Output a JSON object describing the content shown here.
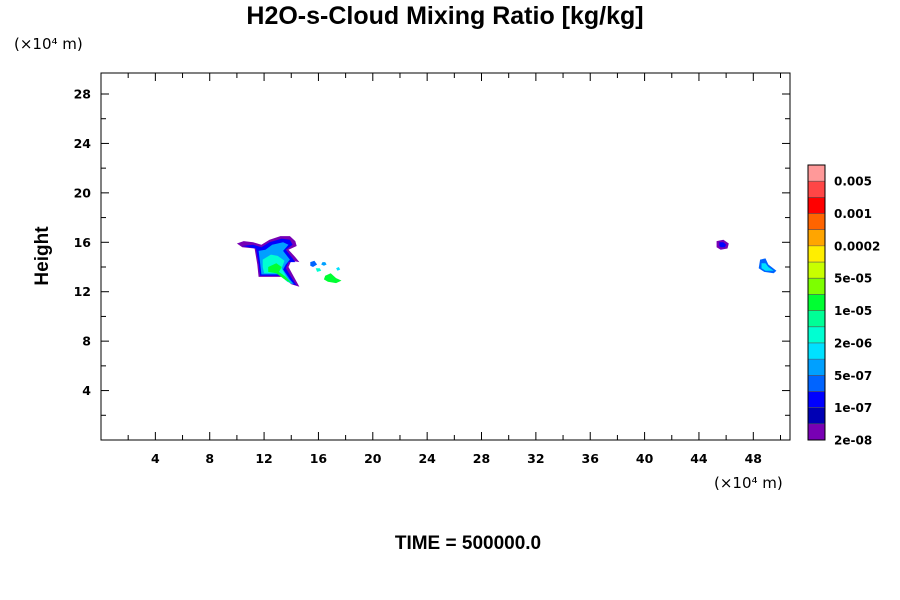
{
  "chart_data": {
    "type": "heatmap",
    "title": "H2O-s-Cloud Mixing Ratio [kg/kg]",
    "ylabel": "Height",
    "x_unit": "(×10⁴ m)",
    "y_unit": "(×10⁴ m)",
    "xlim": [
      0,
      50.7
    ],
    "ylim": [
      0,
      29.7
    ],
    "x_ticks": [
      4,
      8,
      12,
      16,
      20,
      24,
      28,
      32,
      36,
      40,
      44,
      48
    ],
    "y_ticks": [
      4,
      8,
      12,
      16,
      20,
      24,
      28
    ],
    "grid": false,
    "footer": "TIME = 500000.0",
    "colorbar": {
      "labels": [
        "0.005",
        "0.001",
        "0.0002",
        "5e-05",
        "1e-05",
        "2e-06",
        "5e-07",
        "1e-07",
        "2e-08"
      ],
      "colors": [
        "#ff9999",
        "#ff4646",
        "#ff0000",
        "#ff6400",
        "#ffa500",
        "#ffee00",
        "#c8ff00",
        "#7dff00",
        "#00ff32",
        "#00ff96",
        "#00ffd2",
        "#00e1ff",
        "#00a0ff",
        "#0064ff",
        "#0000ff",
        "#0000b4",
        "#7800b4"
      ]
    },
    "regions": [
      {
        "name": "cloud-main-outer",
        "color": "#7800b4",
        "points": [
          [
            10.0,
            15.9
          ],
          [
            10.5,
            16.1
          ],
          [
            11.2,
            16.0
          ],
          [
            11.8,
            15.8
          ],
          [
            12.4,
            16.2
          ],
          [
            13.2,
            16.5
          ],
          [
            13.9,
            16.5
          ],
          [
            14.3,
            16.1
          ],
          [
            14.4,
            15.7
          ],
          [
            13.8,
            15.4
          ],
          [
            14.3,
            14.8
          ],
          [
            14.6,
            14.4
          ],
          [
            14.0,
            14.5
          ],
          [
            13.8,
            14.0
          ],
          [
            14.3,
            13.0
          ],
          [
            14.6,
            12.4
          ],
          [
            14.0,
            12.6
          ],
          [
            13.4,
            13.2
          ],
          [
            11.6,
            13.2
          ],
          [
            11.5,
            14.2
          ],
          [
            11.3,
            15.5
          ],
          [
            10.4,
            15.6
          ]
        ]
      },
      {
        "name": "cloud-main-blue",
        "color": "#0000ff",
        "points": [
          [
            10.4,
            15.7
          ],
          [
            11.2,
            15.8
          ],
          [
            11.8,
            15.6
          ],
          [
            12.4,
            16.0
          ],
          [
            13.3,
            16.3
          ],
          [
            13.9,
            16.2
          ],
          [
            14.1,
            15.8
          ],
          [
            13.6,
            15.4
          ],
          [
            14.1,
            14.7
          ],
          [
            14.3,
            14.4
          ],
          [
            13.8,
            14.4
          ],
          [
            13.6,
            13.9
          ],
          [
            14.1,
            13.0
          ],
          [
            14.4,
            12.5
          ],
          [
            13.9,
            12.7
          ],
          [
            13.3,
            13.3
          ],
          [
            11.7,
            13.3
          ],
          [
            11.6,
            14.3
          ],
          [
            11.4,
            15.5
          ]
        ]
      },
      {
        "name": "cloud-main-lightblue",
        "color": "#00a0ff",
        "points": [
          [
            11.6,
            15.3
          ],
          [
            12.1,
            15.4
          ],
          [
            12.6,
            15.8
          ],
          [
            13.4,
            16.0
          ],
          [
            13.8,
            15.8
          ],
          [
            13.4,
            15.3
          ],
          [
            13.9,
            14.6
          ],
          [
            13.6,
            14.2
          ],
          [
            13.4,
            13.8
          ],
          [
            13.9,
            13.0
          ],
          [
            14.2,
            12.6
          ],
          [
            13.7,
            12.8
          ],
          [
            13.2,
            13.4
          ],
          [
            11.8,
            13.4
          ],
          [
            11.7,
            14.4
          ]
        ]
      },
      {
        "name": "cloud-main-cyan",
        "color": "#00ffd2",
        "points": [
          [
            11.9,
            14.6
          ],
          [
            12.5,
            15.0
          ],
          [
            13.0,
            14.9
          ],
          [
            13.5,
            14.5
          ],
          [
            13.3,
            13.9
          ],
          [
            13.7,
            13.1
          ],
          [
            14.1,
            12.6
          ],
          [
            13.6,
            12.9
          ],
          [
            13.1,
            13.5
          ],
          [
            12.0,
            13.5
          ],
          [
            11.9,
            14.0
          ]
        ]
      },
      {
        "name": "cloud-main-green",
        "color": "#00ff32",
        "points": [
          [
            12.3,
            14.0
          ],
          [
            12.9,
            14.3
          ],
          [
            13.3,
            14.0
          ],
          [
            13.1,
            13.6
          ],
          [
            13.6,
            13.2
          ],
          [
            14.0,
            12.7
          ],
          [
            13.5,
            13.0
          ],
          [
            12.9,
            13.5
          ],
          [
            12.3,
            13.6
          ]
        ]
      },
      {
        "name": "cloud-small-1",
        "color": "#0064ff",
        "points": [
          [
            15.4,
            14.4
          ],
          [
            15.7,
            14.5
          ],
          [
            15.9,
            14.2
          ],
          [
            15.6,
            14.0
          ],
          [
            15.4,
            14.1
          ]
        ]
      },
      {
        "name": "cloud-small-2",
        "color": "#00a0ff",
        "points": [
          [
            16.3,
            14.4
          ],
          [
            16.5,
            14.4
          ],
          [
            16.6,
            14.2
          ],
          [
            16.4,
            14.1
          ],
          [
            16.2,
            14.2
          ]
        ]
      },
      {
        "name": "cloud-small-3",
        "color": "#00e1ff",
        "points": [
          [
            17.3,
            13.9
          ],
          [
            17.5,
            14.0
          ],
          [
            17.6,
            13.8
          ],
          [
            17.4,
            13.7
          ]
        ]
      },
      {
        "name": "cloud-small-4",
        "color": "#00ff32",
        "points": [
          [
            16.5,
            13.3
          ],
          [
            16.9,
            13.5
          ],
          [
            17.3,
            13.1
          ],
          [
            17.7,
            12.9
          ],
          [
            17.3,
            12.7
          ],
          [
            16.7,
            12.8
          ],
          [
            16.4,
            13.0
          ]
        ]
      },
      {
        "name": "cloud-small-5",
        "color": "#00ffd2",
        "points": [
          [
            15.8,
            13.9
          ],
          [
            16.1,
            13.9
          ],
          [
            16.2,
            13.7
          ],
          [
            15.9,
            13.6
          ]
        ]
      },
      {
        "name": "cloud-right-1-outer",
        "color": "#7800b4",
        "points": [
          [
            45.3,
            16.1
          ],
          [
            45.8,
            16.2
          ],
          [
            46.2,
            15.9
          ],
          [
            46.1,
            15.5
          ],
          [
            45.6,
            15.4
          ],
          [
            45.3,
            15.6
          ]
        ]
      },
      {
        "name": "cloud-right-1-inner",
        "color": "#0000ff",
        "points": [
          [
            45.5,
            16.0
          ],
          [
            45.8,
            16.0
          ],
          [
            46.0,
            15.8
          ],
          [
            45.9,
            15.6
          ],
          [
            45.6,
            15.6
          ],
          [
            45.5,
            15.7
          ]
        ]
      },
      {
        "name": "cloud-right-2-outer",
        "color": "#0064ff",
        "points": [
          [
            48.5,
            14.6
          ],
          [
            48.9,
            14.7
          ],
          [
            49.1,
            14.2
          ],
          [
            49.7,
            13.7
          ],
          [
            49.5,
            13.5
          ],
          [
            48.8,
            13.6
          ],
          [
            48.4,
            13.9
          ]
        ]
      },
      {
        "name": "cloud-right-2-inner",
        "color": "#00e1ff",
        "points": [
          [
            48.6,
            14.3
          ],
          [
            48.9,
            14.3
          ],
          [
            49.1,
            14.0
          ],
          [
            49.5,
            13.7
          ],
          [
            48.9,
            13.7
          ],
          [
            48.6,
            13.9
          ]
        ]
      }
    ]
  }
}
